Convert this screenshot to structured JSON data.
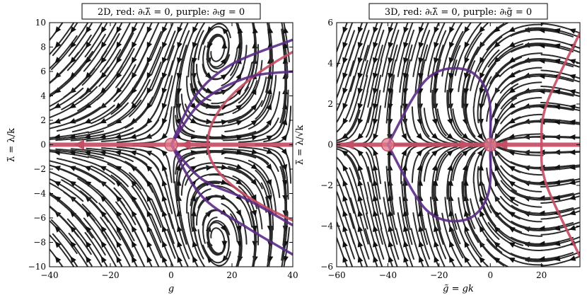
{
  "chart_data": [
    {
      "type": "streamplot",
      "title": "2D, red: ∂ₜλ̃ = 0, purple: ∂ₜg = 0",
      "xlabel": "g",
      "ylabel": "λ̃ = λ/k",
      "xlim": [
        -40,
        40
      ],
      "ylim": [
        -10,
        10
      ],
      "xticks": [
        "−40",
        "−20",
        "0",
        "20",
        "40"
      ],
      "yticks": [
        "−10",
        "−8",
        "−6",
        "−4",
        "−2",
        "0",
        "2",
        "4",
        "6",
        "8",
        "10"
      ],
      "xtick_values": [
        -40,
        -20,
        0,
        20,
        40
      ],
      "ytick_values": [
        -10,
        -8,
        -6,
        -4,
        -2,
        0,
        2,
        4,
        6,
        8,
        10
      ],
      "colors": {
        "red": "#c44e64",
        "purple": "#5b2a86",
        "stream": "#2a2a2a"
      },
      "fixed_points": [
        {
          "x": 0,
          "y": 0
        }
      ],
      "nullclines": [
        {
          "color": "red",
          "kind": "line",
          "points": [
            [
              -40,
              0
            ],
            [
              40,
              0
            ]
          ]
        },
        {
          "color": "red",
          "kind": "parabola",
          "vertex": [
            12,
            0
          ],
          "points": [
            [
              40,
              7.6
            ],
            [
              12,
              0
            ],
            [
              40,
              -6.2
            ]
          ]
        },
        {
          "color": "purple",
          "kind": "curve",
          "points": [
            [
              0,
              0
            ],
            [
              8,
              4
            ],
            [
              20,
              6.6
            ],
            [
              40,
              8.6
            ]
          ]
        },
        {
          "color": "purple",
          "kind": "curve",
          "points": [
            [
              0,
              0
            ],
            [
              10,
              3.5
            ],
            [
              25,
              5.5
            ],
            [
              40,
              6.0
            ]
          ]
        },
        {
          "color": "purple",
          "kind": "curve",
          "points": [
            [
              0,
              0
            ],
            [
              10,
              -2.8
            ],
            [
              25,
              -4.5
            ],
            [
              40,
              -6.6
            ]
          ]
        },
        {
          "color": "purple",
          "kind": "curve",
          "points": [
            [
              0,
              0
            ],
            [
              10,
              -4.2
            ],
            [
              25,
              -6.8
            ],
            [
              40,
              -9.0
            ]
          ]
        }
      ]
    },
    {
      "type": "streamplot",
      "title": "3D, red: ∂ₜλ̃ = 0, purple: ∂ₜg̃ = 0",
      "xlabel": "g̃ = gk",
      "ylabel": "λ̃ = λ/√k",
      "xlim": [
        -60,
        35
      ],
      "ylim": [
        -6,
        6
      ],
      "xticks": [
        "−60",
        "−40",
        "−20",
        "0",
        "20"
      ],
      "yticks": [
        "−6",
        "−4",
        "−2",
        "0",
        "2",
        "4",
        "6"
      ],
      "xtick_values": [
        -60,
        -40,
        -20,
        0,
        20
      ],
      "ytick_values": [
        -6,
        -4,
        -2,
        0,
        2,
        4,
        6
      ],
      "colors": {
        "red": "#c44e64",
        "purple": "#5b2a86",
        "stream": "#2a2a2a"
      },
      "fixed_points": [
        {
          "x": -40,
          "y": 0
        },
        {
          "x": 0,
          "y": 0
        }
      ],
      "nullclines": [
        {
          "color": "red",
          "kind": "line",
          "points": [
            [
              -60,
              0
            ],
            [
              35,
              0
            ]
          ]
        },
        {
          "color": "red",
          "kind": "curve",
          "points": [
            [
              35,
              5.5
            ],
            [
              22,
              2
            ],
            [
              20,
              0
            ],
            [
              22,
              -2
            ],
            [
              35,
              -5.5
            ]
          ]
        },
        {
          "color": "purple",
          "kind": "closed",
          "points": [
            [
              -40,
              0
            ],
            [
              -25,
              3.2
            ],
            [
              -10,
              3.7
            ],
            [
              -1,
              2.5
            ],
            [
              0,
              0
            ],
            [
              -1,
              -2.5
            ],
            [
              -10,
              -3.7
            ],
            [
              -25,
              -3.2
            ],
            [
              -40,
              0
            ]
          ]
        }
      ]
    }
  ]
}
